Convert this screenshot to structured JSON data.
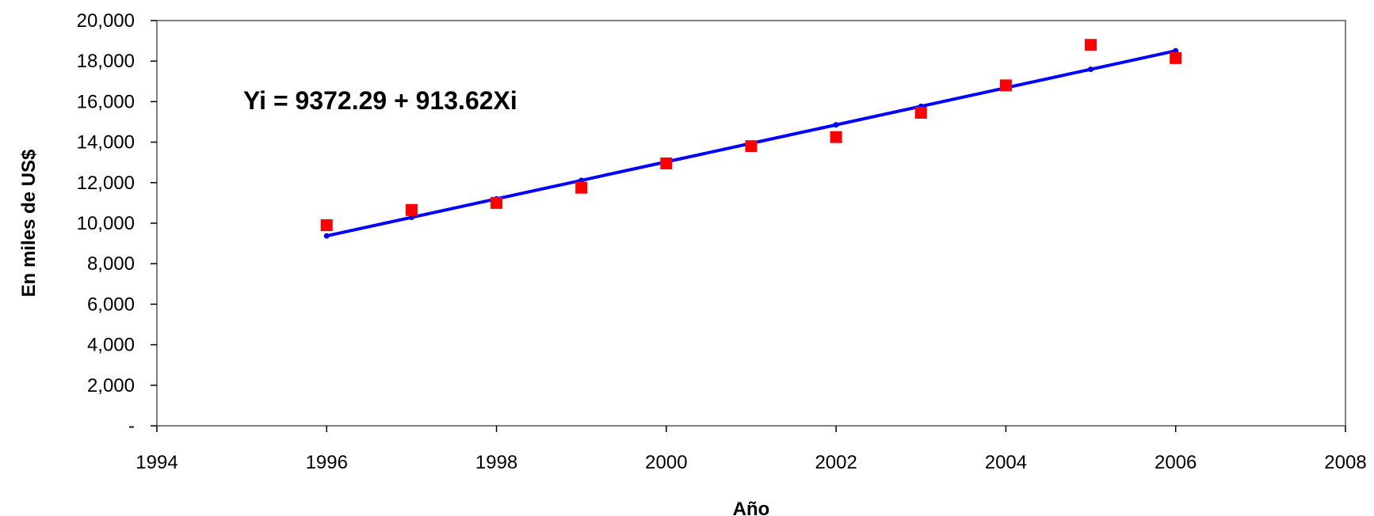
{
  "chart_data": {
    "type": "scatter",
    "title": "",
    "xlabel": "Año",
    "ylabel": "En miles de US$",
    "xlim": [
      1994,
      2008
    ],
    "ylim": [
      0,
      20000
    ],
    "x_ticks": [
      1994,
      1996,
      1998,
      2000,
      2002,
      2004,
      2006,
      2008
    ],
    "x_tick_labels": [
      "1994",
      "1996",
      "1998",
      "2000",
      "2002",
      "2004",
      "2006",
      "2008"
    ],
    "y_ticks": [
      0,
      2000,
      4000,
      6000,
      8000,
      10000,
      12000,
      14000,
      16000,
      18000,
      20000
    ],
    "y_tick_labels": [
      "-",
      "2,000",
      "4,000",
      "6,000",
      "8,000",
      "10,000",
      "12,000",
      "14,000",
      "16,000",
      "18,000",
      "20,000"
    ],
    "grid": false,
    "legend": "none",
    "annotation": "Yi = 9372.29 + 913.62Xi",
    "series": [
      {
        "kind": "scatter",
        "marker": "square",
        "color": "#ff0000",
        "x": [
          1996,
          1997,
          1998,
          1999,
          2000,
          2001,
          2002,
          2003,
          2004,
          2005,
          2006
        ],
        "values": [
          9900,
          10650,
          11000,
          11750,
          12950,
          13800,
          14250,
          15450,
          16800,
          18800,
          18150
        ]
      },
      {
        "kind": "line",
        "marker": "dot",
        "color": "#0000ff",
        "x": [
          1996,
          1997,
          1998,
          1999,
          2000,
          2001,
          2002,
          2003,
          2004,
          2005,
          2006
        ],
        "values": [
          9372.29,
          10285.91,
          11199.53,
          12113.15,
          13026.77,
          13940.39,
          14854.01,
          15767.63,
          16681.25,
          17594.87,
          18508.49
        ]
      }
    ]
  }
}
